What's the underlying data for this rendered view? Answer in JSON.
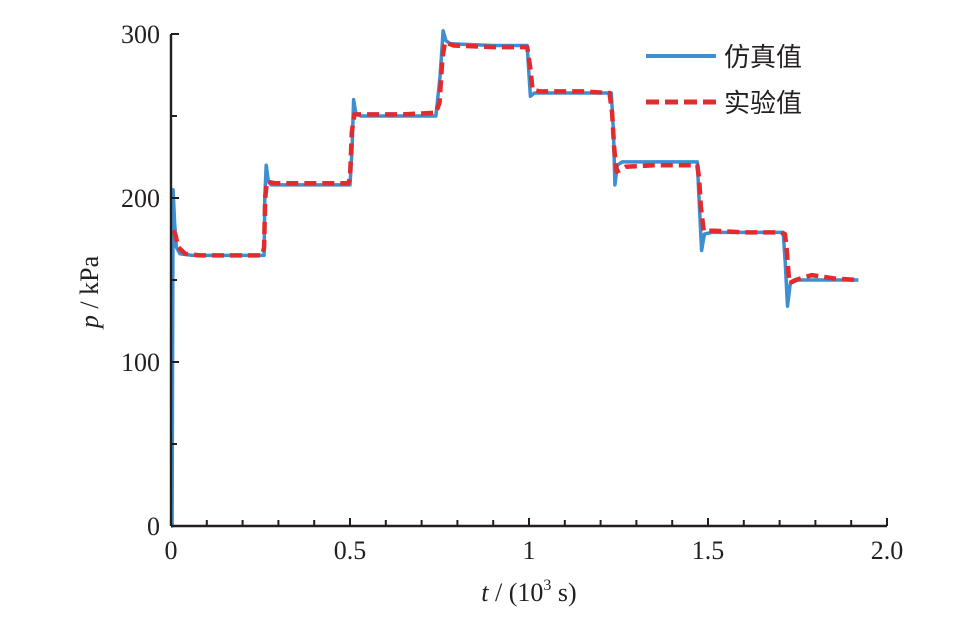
{
  "chart_data": {
    "type": "line",
    "xlabel": {
      "var": "t",
      "rest": " / (10",
      "sup": "3",
      "tail": " s)"
    },
    "ylabel": {
      "var": "p",
      "rest": " / kPa"
    },
    "xlim": [
      0,
      2.0
    ],
    "ylim": [
      0,
      300
    ],
    "x_ticks": [
      0,
      0.5,
      1,
      1.5,
      2.0
    ],
    "x_tick_labels": [
      "0",
      "0.5",
      "1",
      "1.5",
      "2.0"
    ],
    "y_ticks": [
      0,
      100,
      200,
      300
    ],
    "y_tick_labels": [
      "0",
      "100",
      "200",
      "300"
    ],
    "grid": false,
    "legend_position": "top-right",
    "series": [
      {
        "name": "仿真值",
        "color": "#3d8fd1",
        "style": "solid",
        "points": [
          [
            0.0,
            0
          ],
          [
            0.003,
            0
          ],
          [
            0.006,
            205
          ],
          [
            0.01,
            185
          ],
          [
            0.015,
            170
          ],
          [
            0.025,
            166
          ],
          [
            0.06,
            165
          ],
          [
            0.15,
            165
          ],
          [
            0.26,
            165
          ],
          [
            0.262,
            200
          ],
          [
            0.266,
            220
          ],
          [
            0.272,
            210
          ],
          [
            0.28,
            208
          ],
          [
            0.4,
            208
          ],
          [
            0.5,
            208
          ],
          [
            0.506,
            230
          ],
          [
            0.51,
            260
          ],
          [
            0.516,
            252
          ],
          [
            0.53,
            250
          ],
          [
            0.65,
            250
          ],
          [
            0.74,
            250
          ],
          [
            0.752,
            275
          ],
          [
            0.76,
            302
          ],
          [
            0.768,
            296
          ],
          [
            0.78,
            294
          ],
          [
            0.9,
            293
          ],
          [
            0.995,
            293
          ],
          [
            1.0,
            275
          ],
          [
            1.004,
            262
          ],
          [
            1.015,
            264
          ],
          [
            1.1,
            264
          ],
          [
            1.23,
            264
          ],
          [
            1.236,
            240
          ],
          [
            1.24,
            208
          ],
          [
            1.247,
            220
          ],
          [
            1.26,
            222
          ],
          [
            1.4,
            222
          ],
          [
            1.47,
            222
          ],
          [
            1.476,
            195
          ],
          [
            1.482,
            168
          ],
          [
            1.49,
            178
          ],
          [
            1.51,
            179
          ],
          [
            1.65,
            179
          ],
          [
            1.71,
            179
          ],
          [
            1.716,
            160
          ],
          [
            1.722,
            134
          ],
          [
            1.73,
            148
          ],
          [
            1.75,
            150
          ],
          [
            1.85,
            150
          ],
          [
            1.92,
            150
          ]
        ]
      },
      {
        "name": "实验值",
        "color": "#e12b2d",
        "style": "dashed",
        "points": [
          [
            0.005,
            180
          ],
          [
            0.012,
            178
          ],
          [
            0.02,
            170
          ],
          [
            0.04,
            166
          ],
          [
            0.08,
            165
          ],
          [
            0.2,
            165
          ],
          [
            0.255,
            165
          ],
          [
            0.26,
            170
          ],
          [
            0.263,
            200
          ],
          [
            0.268,
            210
          ],
          [
            0.29,
            209
          ],
          [
            0.4,
            209
          ],
          [
            0.495,
            209
          ],
          [
            0.5,
            212
          ],
          [
            0.505,
            240
          ],
          [
            0.512,
            251
          ],
          [
            0.53,
            251
          ],
          [
            0.65,
            251
          ],
          [
            0.74,
            252
          ],
          [
            0.75,
            258
          ],
          [
            0.758,
            285
          ],
          [
            0.765,
            295
          ],
          [
            0.79,
            293
          ],
          [
            0.9,
            292
          ],
          [
            0.995,
            292
          ],
          [
            1.003,
            280
          ],
          [
            1.01,
            266
          ],
          [
            1.03,
            265
          ],
          [
            1.15,
            265
          ],
          [
            1.225,
            264
          ],
          [
            1.232,
            252
          ],
          [
            1.238,
            230
          ],
          [
            1.245,
            216
          ],
          [
            1.27,
            219
          ],
          [
            1.35,
            220
          ],
          [
            1.47,
            220
          ],
          [
            1.475,
            212
          ],
          [
            1.48,
            195
          ],
          [
            1.488,
            180
          ],
          [
            1.52,
            180
          ],
          [
            1.6,
            179
          ],
          [
            1.7,
            179
          ],
          [
            1.715,
            178
          ],
          [
            1.72,
            168
          ],
          [
            1.727,
            148
          ],
          [
            1.745,
            150
          ],
          [
            1.79,
            153
          ],
          [
            1.85,
            151
          ],
          [
            1.92,
            150
          ]
        ]
      }
    ]
  }
}
